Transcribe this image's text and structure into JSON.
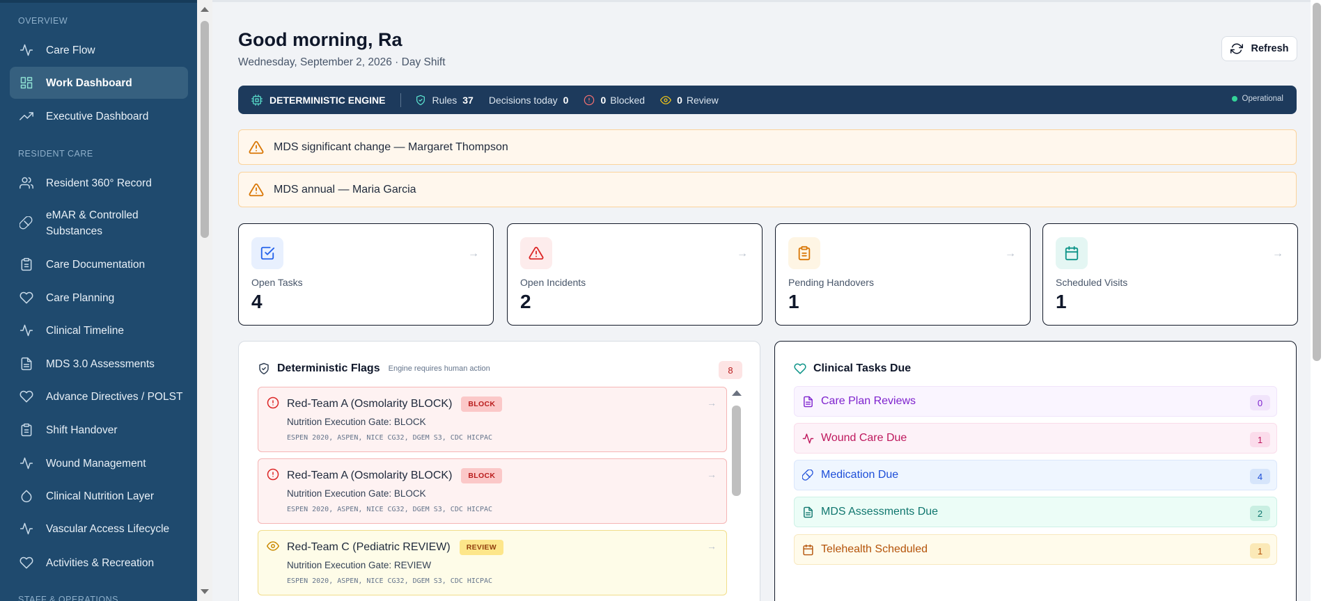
{
  "sidebar": {
    "sections": {
      "overview": "OVERVIEW",
      "resident_care": "RESIDENT CARE",
      "staff_ops": "STAFF & OPERATIONS"
    },
    "items": [
      {
        "label": "Care Flow",
        "icon": "activity-icon"
      },
      {
        "label": "Work Dashboard",
        "icon": "grid-icon",
        "active": true
      },
      {
        "label": "Executive Dashboard",
        "icon": "trending-up-icon"
      },
      {
        "label": "Resident 360° Record",
        "icon": "users-icon"
      },
      {
        "label": "eMAR & Controlled Substances",
        "icon": "pill-icon"
      },
      {
        "label": "Care Documentation",
        "icon": "clipboard-icon"
      },
      {
        "label": "Care Planning",
        "icon": "heart-icon"
      },
      {
        "label": "Clinical Timeline",
        "icon": "activity-icon"
      },
      {
        "label": "MDS 3.0 Assessments",
        "icon": "file-text-icon"
      },
      {
        "label": "Advance Directives / POLST",
        "icon": "heart-icon"
      },
      {
        "label": "Shift Handover",
        "icon": "clipboard-icon"
      },
      {
        "label": "Wound Management",
        "icon": "activity-icon"
      },
      {
        "label": "Clinical Nutrition Layer",
        "icon": "droplet-icon"
      },
      {
        "label": "Vascular Access Lifecycle",
        "icon": "activity-icon"
      },
      {
        "label": "Activities & Recreation",
        "icon": "heart-icon"
      }
    ]
  },
  "header": {
    "greeting": "Good morning, Ra",
    "date": "Wednesday, September 2, 2026 · Day Shift",
    "refresh_label": "Refresh"
  },
  "engine": {
    "title": "DETERMINISTIC ENGINE",
    "rules_label": "Rules",
    "rules_value": "37",
    "decisions_label": "Decisions today",
    "decisions_value": "0",
    "blocked_value": "0",
    "blocked_label": "Blocked",
    "review_value": "0",
    "review_label": "Review",
    "status": "Operational",
    "status_color": "#34d399"
  },
  "alerts": [
    {
      "text": "MDS significant change — Margaret Thompson"
    },
    {
      "text": "MDS annual — Maria Garcia"
    }
  ],
  "stats": [
    {
      "label": "Open Tasks",
      "value": "4",
      "icon": "check-square-icon",
      "color": "#2563eb",
      "bg": "#e8f0fe"
    },
    {
      "label": "Open Incidents",
      "value": "2",
      "icon": "alert-triangle-icon",
      "color": "#dc2626",
      "bg": "#fdecec"
    },
    {
      "label": "Pending Handovers",
      "value": "1",
      "icon": "clipboard-icon",
      "color": "#d97706",
      "bg": "#fef5e4"
    },
    {
      "label": "Scheduled Visits",
      "value": "1",
      "icon": "calendar-icon",
      "color": "#0d9488",
      "bg": "#e4f6f3"
    }
  ],
  "flags": {
    "title": "Deterministic Flags",
    "subtitle": "Engine requires human action",
    "count": "8",
    "items": [
      {
        "title": "Red-Team A (Osmolarity BLOCK)",
        "badge": "BLOCK",
        "subtitle": "Nutrition Execution Gate: BLOCK",
        "refs": "ESPEN 2020, ASPEN, NICE CG32, DGEM S3, CDC HICPAC",
        "kind": "block"
      },
      {
        "title": "Red-Team A (Osmolarity BLOCK)",
        "badge": "BLOCK",
        "subtitle": "Nutrition Execution Gate: BLOCK",
        "refs": "ESPEN 2020, ASPEN, NICE CG32, DGEM S3, CDC HICPAC",
        "kind": "block"
      },
      {
        "title": "Red-Team C (Pediatric REVIEW)",
        "badge": "REVIEW",
        "subtitle": "Nutrition Execution Gate: REVIEW",
        "refs": "ESPEN 2020, ASPEN, NICE CG32, DGEM S3, CDC HICPAC",
        "kind": "review"
      }
    ]
  },
  "clinical_tasks": {
    "title": "Clinical Tasks Due",
    "items": [
      {
        "label": "Care Plan Reviews",
        "count": "0",
        "icon": "file-text-icon",
        "color": "#7e22ce",
        "bg": "#faf5ff",
        "border": "#f0e4fb",
        "badge_bg": "#f1e4fb"
      },
      {
        "label": "Wound Care Due",
        "count": "1",
        "icon": "activity-icon",
        "color": "#be185d",
        "bg": "#fdf2f8",
        "border": "#fadcea",
        "badge_bg": "#fbdceb"
      },
      {
        "label": "Medication Due",
        "count": "4",
        "icon": "pill-icon",
        "color": "#1d4ed8",
        "bg": "#eff6ff",
        "border": "#dbe7fb",
        "badge_bg": "#d6e5fb"
      },
      {
        "label": "MDS Assessments Due",
        "count": "2",
        "icon": "file-text-icon",
        "color": "#0f766e",
        "bg": "#ecfdf7",
        "border": "#cdf1e6",
        "badge_bg": "#c9efe2"
      },
      {
        "label": "Telehealth Scheduled",
        "count": "1",
        "icon": "calendar-icon",
        "color": "#b45309",
        "bg": "#fffbeb",
        "border": "#f8e8bf",
        "badge_bg": "#fbe9b7"
      }
    ]
  }
}
